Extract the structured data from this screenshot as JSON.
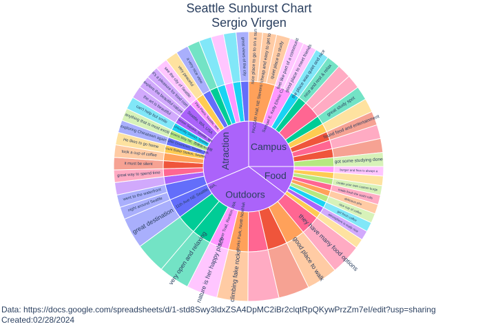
{
  "title": {
    "line1": "Seattle Sunburst Chart",
    "line2": "Sergio Virgen"
  },
  "footer": {
    "data_line": "Data: https://docs.google.com/spreadsheets/d/1-std8Swy3ldxZSA4DpMC2iBr2clqtRpQKywPrzZm7eI/edit?usp=sharing",
    "created_line": "Created:02/28/2024"
  },
  "chart_data": {
    "type": "sunburst",
    "palette": [
      "#636efa",
      "#ef553b",
      "#00cc96",
      "#ab63fa",
      "#ffa15a",
      "#19d3f3",
      "#ff6692",
      "#b6e880",
      "#ff97ff",
      "#fecb52"
    ],
    "root_colors": {
      "Campus": "#ab63fa",
      "Food": "#ab63fa",
      "Outdoors": "#ab63fa",
      "Atraction": "#ab63fa"
    },
    "roots": [
      {
        "name": "Campus",
        "places": [
          {
            "name": "PACCAR Hall, NE Stevens Way, Seattle, WA, USA",
            "color": "#ffa15a",
            "leaves": [
              "nice place to go to on a sunny day",
              "cheap and easy to get to",
              "quiet place to study"
            ]
          },
          {
            "name": "Samuel E. Kelly Ethnic Cultural Center, Brooklyn Avenue Northeast, Seattle, WA, USA",
            "color": "#ff97ff",
            "leaves": [
              "feel like part of a community",
              "good place to meet friends"
            ]
          },
          {
            "name": "",
            "color": "#19d3f3",
            "leaves": [
              "the place was quiet and nice"
            ]
          },
          {
            "name": "",
            "color": "#00cc96",
            "leaves": [
              "nice and rest & relax"
            ]
          },
          {
            "name": "",
            "color": "#ff6692",
            "leaves": [
              "",
              ""
            ]
          },
          {
            "name": "",
            "color": "#00cc96",
            "leaves": [
              "great study spot"
            ]
          },
          {
            "name": "",
            "color": "#fecb52",
            "leaves": [
              ""
            ]
          },
          {
            "name": "",
            "color": "#ef553b",
            "leaves": [
              "found food and entertainment"
            ]
          },
          {
            "name": "",
            "color": "#ff6692",
            "leaves": [
              ""
            ]
          },
          {
            "name": "",
            "color": "#ef553b",
            "leaves": [
              ""
            ]
          },
          {
            "name": "",
            "color": "#b6e880",
            "leaves": [
              "got some studying done"
            ]
          }
        ]
      },
      {
        "name": "Food",
        "places": [
          {
            "name": "",
            "color": "#ff97ff",
            "leaves": [
              "burger and fries is always a must"
            ]
          },
          {
            "name": "",
            "color": "#fecb52",
            "leaves": [
              ""
            ]
          },
          {
            "name": "",
            "color": "#b6e880",
            "leaves": [
              "create your own custom burgers"
            ]
          },
          {
            "name": "",
            "color": "#ff6692",
            "leaves": [
              "made fresh the sushi rolls"
            ]
          },
          {
            "name": "",
            "color": "#ffa15a",
            "leaves": [
              "delicious pho"
            ]
          },
          {
            "name": "",
            "color": "#b6e880",
            "leaves": [
              "nice cup of coffee"
            ]
          },
          {
            "name": "",
            "color": "#19d3f3",
            "leaves": [
              "get fresh coffee"
            ]
          },
          {
            "name": "",
            "color": "#ab63fa",
            "leaves": [
              "atmosphere is really nice"
            ]
          },
          {
            "name": "",
            "color": "#fecb52",
            "leaves": [
              ""
            ]
          }
        ]
      },
      {
        "name": "Outdoors",
        "places": [
          {
            "name": "",
            "color": "#ff6692",
            "leaves": [
              "they have many food options"
            ]
          },
          {
            "name": "",
            "color": "#ffa15a",
            "leaves": [
              "good place to walk"
            ]
          },
          {
            "name": "",
            "color": "#ef553b",
            "leaves": [
              ""
            ]
          },
          {
            "name": "",
            "color": "#ff6692",
            "leaves": [
              ""
            ]
          },
          {
            "name": "Gas Works Park, North Northlake Way, Seattle, WA",
            "color": "#ffa15a",
            "leaves": [
              "climbing fake rocks"
            ]
          },
          {
            "name": "Cedar River Trail, Renton, WA",
            "color": "#ff97ff",
            "leaves": [
              "nature is her happy place"
            ]
          },
          {
            "name": "",
            "color": "#00cc96",
            "leaves": [
              "very open and relaxing"
            ]
          },
          {
            "name": "",
            "color": "#00cc96",
            "leaves": [
              ""
            ]
          },
          {
            "name": "5300 11th Ave NE Seattle, WA, USA",
            "color": "#636efa",
            "leaves": [
              "great destination"
            ]
          }
        ]
      },
      {
        "name": "Atraction",
        "places": [
          {
            "name": "",
            "color": "#636efa",
            "leaves": [
              "night around Seattle",
              "went to the waterfront"
            ]
          },
          {
            "name": "",
            "color": "#ab63fa",
            "leaves": [
              ""
            ]
          },
          {
            "name": "",
            "color": "#ff6692",
            "leaves": [
              "great way to spend time"
            ]
          },
          {
            "name": "",
            "color": "#ef553b",
            "leaves": [
              "it must be silent"
            ]
          },
          {
            "name": "",
            "color": "#ffa15a",
            "leaves": [
              "took a cup of coffee"
            ]
          },
          {
            "name": "Mount Baker Station, Seattle, WA",
            "color": "#fecb52",
            "leaves": [
              "He likes to go home"
            ]
          },
          {
            "name": "Seattle Downtown, Seattle, WA",
            "color": "#636efa",
            "leaves": [
              "exploring Chinatown again"
            ]
          },
          {
            "name": "W Stevens Way NE, 西雅图华盛顿",
            "color": "#b6e880",
            "leaves": [
              "anything that is most exciting"
            ]
          },
          {
            "name": "University District, Seattle, WA",
            "color": "#19d3f3",
            "leaves": [
              "can't help but smile"
            ]
          },
          {
            "name": "Pioneer Square, Seattle, WA",
            "color": "#ab63fa",
            "leaves": [
              "the art is beautiful"
            ]
          },
          {
            "name": "Seattle, WA, USA",
            "color": "#ab63fa",
            "leaves": [
              "explore the beautiful nature",
              "it's a pleasure for food coming"
            ]
          },
          {
            "name": "Pike Place, Seattle, WA",
            "color": "#ff97ff",
            "leaves": [
              "see the city of Seattle"
            ]
          },
          {
            "name": "",
            "color": "#fecb52",
            "leaves": [
              "very peaceful"
            ]
          },
          {
            "name": "",
            "color": "#636efa",
            "leaves": [
              "a very nice view"
            ]
          },
          {
            "name": "",
            "color": "#00cc96",
            "leaves": [
              ""
            ]
          },
          {
            "name": "",
            "color": "#19d3f3",
            "leaves": [
              ""
            ]
          },
          {
            "name": "",
            "color": "#ff97ff",
            "leaves": [
              ""
            ]
          },
          {
            "name": "",
            "color": "#19d3f3",
            "leaves": [
              ""
            ]
          },
          {
            "name": "",
            "color": "#636efa",
            "leaves": [
              "great views of the city"
            ]
          }
        ]
      }
    ]
  }
}
